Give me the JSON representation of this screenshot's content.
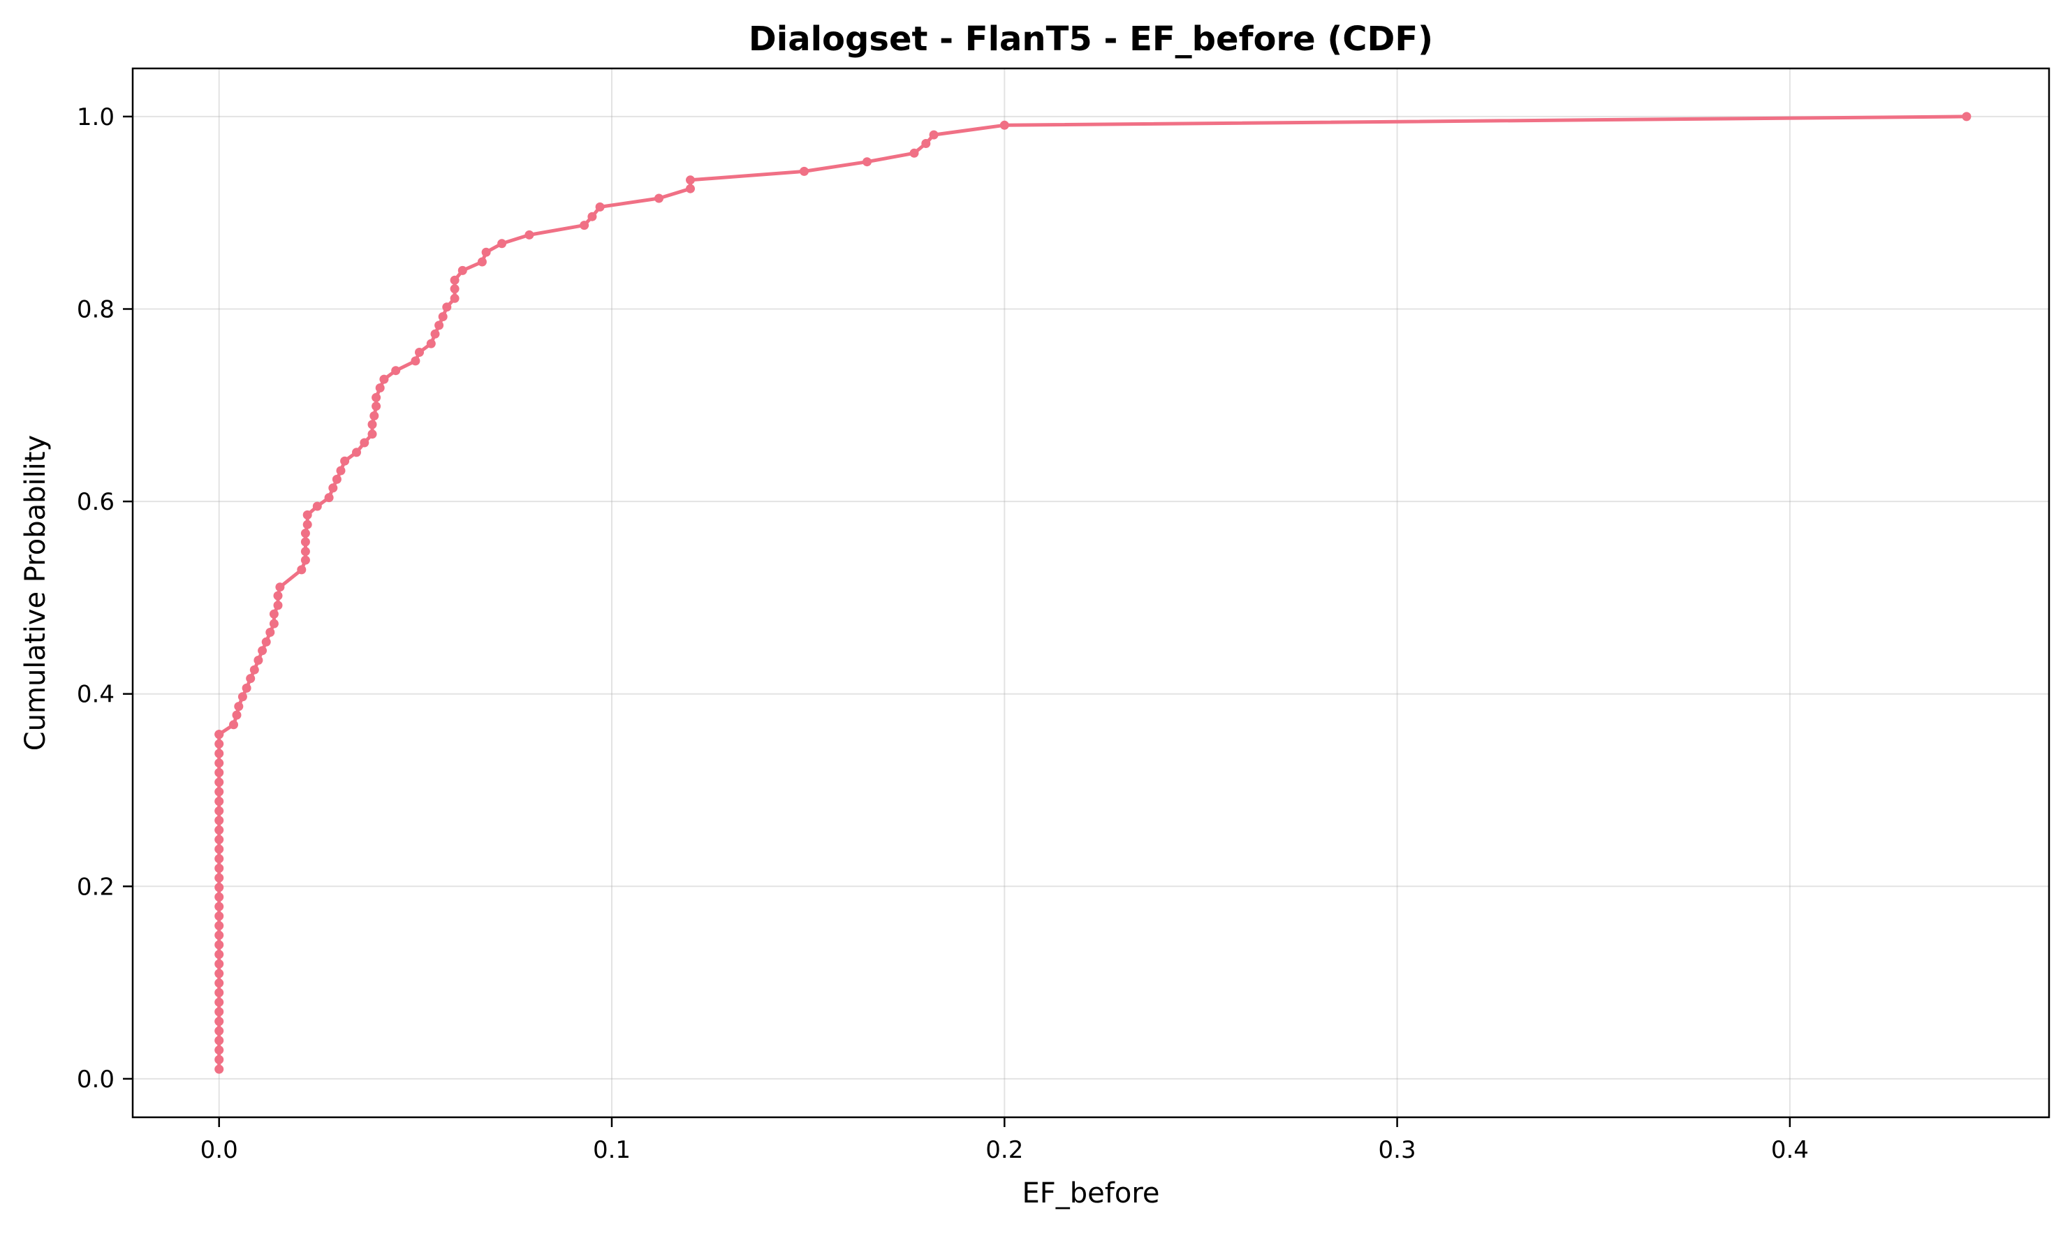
{
  "chart_data": {
    "type": "line",
    "title": "Dialogset - FlanT5 - EF_before (CDF)",
    "xlabel": "EF_before",
    "ylabel": "Cumulative Probability",
    "xlim": [
      -0.022,
      0.466
    ],
    "ylim": [
      -0.04,
      1.05
    ],
    "x_ticks": [
      0.0,
      0.1,
      0.2,
      0.3,
      0.4
    ],
    "x_tick_labels": [
      "0.0",
      "0.1",
      "0.2",
      "0.3",
      "0.4"
    ],
    "y_ticks": [
      0.0,
      0.2,
      0.4,
      0.6,
      0.8,
      1.0
    ],
    "y_tick_labels": [
      "0.0",
      "0.2",
      "0.4",
      "0.6",
      "0.8",
      "1.0"
    ],
    "grid": true,
    "line_color": "#f07085",
    "zero_mass": {
      "x": 0.0,
      "y_from": 0.01,
      "y_to": 0.358,
      "steps": 36
    },
    "series": [
      {
        "x": [
          0.0,
          0.0037,
          0.0045,
          0.005,
          0.006,
          0.007,
          0.008,
          0.009,
          0.01,
          0.011,
          0.012,
          0.013,
          0.014,
          0.014,
          0.015,
          0.015,
          0.0155,
          0.021,
          0.022,
          0.022,
          0.022,
          0.022,
          0.0225,
          0.0225,
          0.025,
          0.028,
          0.029,
          0.03,
          0.031,
          0.032,
          0.035,
          0.037,
          0.039,
          0.039,
          0.0395,
          0.04,
          0.04,
          0.041,
          0.042,
          0.045,
          0.05,
          0.051,
          0.054,
          0.055,
          0.056,
          0.057,
          0.058,
          0.06,
          0.06,
          0.06,
          0.062,
          0.067,
          0.068,
          0.072,
          0.079,
          0.093,
          0.095,
          0.097,
          0.112,
          0.12,
          0.12,
          0.149,
          0.165,
          0.177,
          0.18,
          0.182,
          0.2,
          0.445
        ],
        "y": [
          0.358,
          0.368,
          0.378,
          0.387,
          0.397,
          0.406,
          0.416,
          0.425,
          0.435,
          0.445,
          0.454,
          0.464,
          0.473,
          0.483,
          0.492,
          0.502,
          0.511,
          0.529,
          0.539,
          0.548,
          0.558,
          0.567,
          0.576,
          0.586,
          0.595,
          0.604,
          0.614,
          0.623,
          0.632,
          0.642,
          0.651,
          0.661,
          0.67,
          0.68,
          0.689,
          0.699,
          0.708,
          0.718,
          0.727,
          0.736,
          0.746,
          0.755,
          0.764,
          0.774,
          0.783,
          0.792,
          0.802,
          0.811,
          0.821,
          0.83,
          0.84,
          0.849,
          0.859,
          0.868,
          0.877,
          0.887,
          0.896,
          0.906,
          0.915,
          0.925,
          0.934,
          0.943,
          0.953,
          0.962,
          0.972,
          0.981,
          0.991,
          1.0
        ]
      }
    ]
  }
}
